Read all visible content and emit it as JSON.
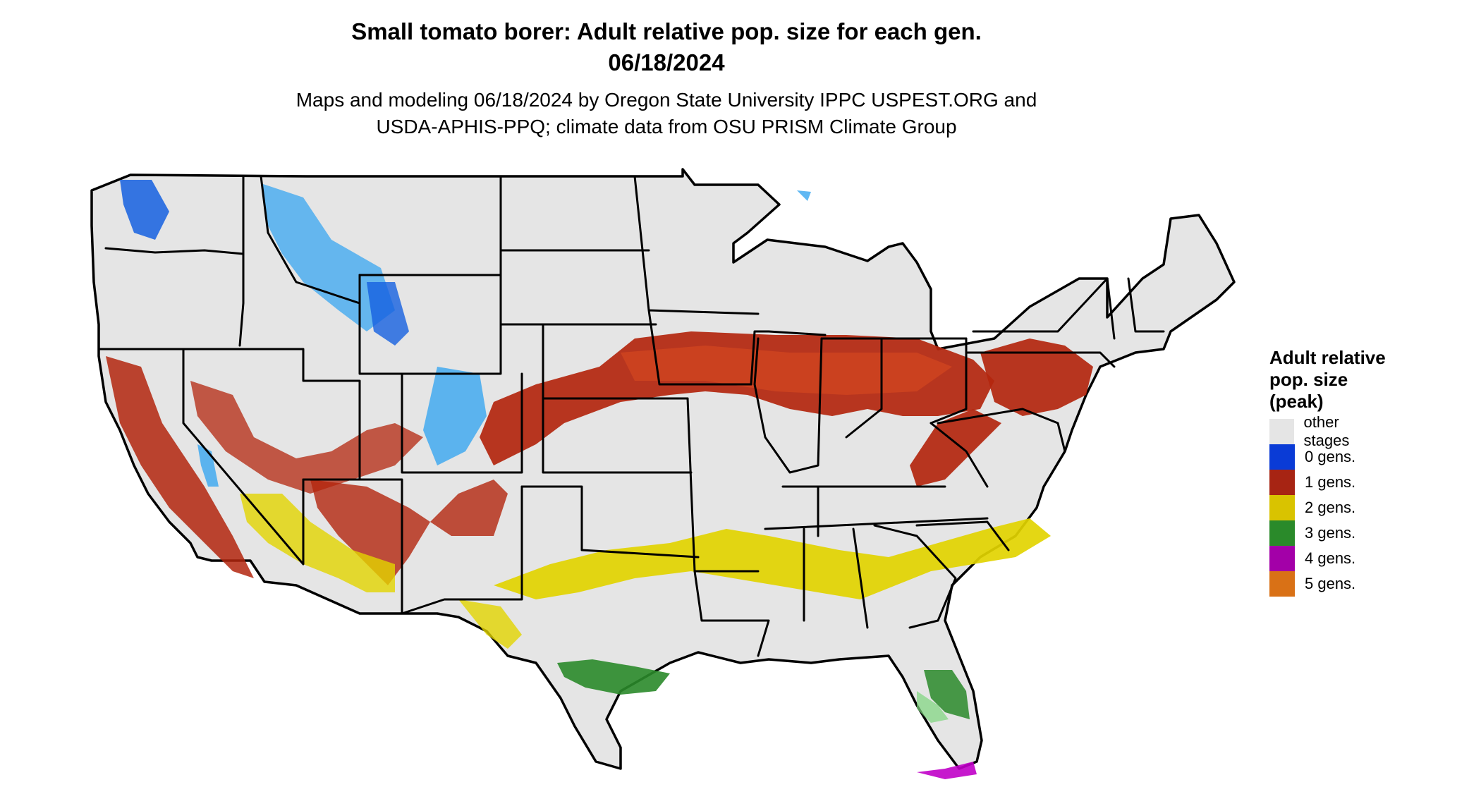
{
  "title": {
    "line1": "Small tomato borer: Adult relative pop. size for each gen.",
    "line2": "06/18/2024"
  },
  "subtitle": {
    "line1": "Maps and modeling 06/18/2024 by Oregon State University IPPC USPEST.ORG and",
    "line2": "USDA-APHIS-PPQ; climate data from OSU PRISM Climate Group"
  },
  "legend": {
    "title_lines": [
      "Adult relative",
      "pop. size",
      "(peak)"
    ],
    "items": [
      {
        "label": "other stages",
        "color": "#e5e5e5"
      },
      {
        "label": "0 gens.",
        "color": "#0a3bd6"
      },
      {
        "label": "1 gens.",
        "color": "#a72413"
      },
      {
        "label": "2 gens.",
        "color": "#d9c300"
      },
      {
        "label": "3 gens.",
        "color": "#2a8a2a"
      },
      {
        "label": "4 gens.",
        "color": "#a300a8"
      },
      {
        "label": "5 gens.",
        "color": "#d97116"
      }
    ]
  },
  "map_colors": {
    "land": "#e5e5e5",
    "border": "#000000",
    "gen0": "#1560e0",
    "gen0_light": "#38a6f0",
    "gen1": "#b3260e",
    "gen1_light": "#d94a1f",
    "gen2": "#e2d400",
    "gen3": "#2a8a2a",
    "gen3_light": "#7ed67e",
    "gen4": "#c000c8"
  }
}
